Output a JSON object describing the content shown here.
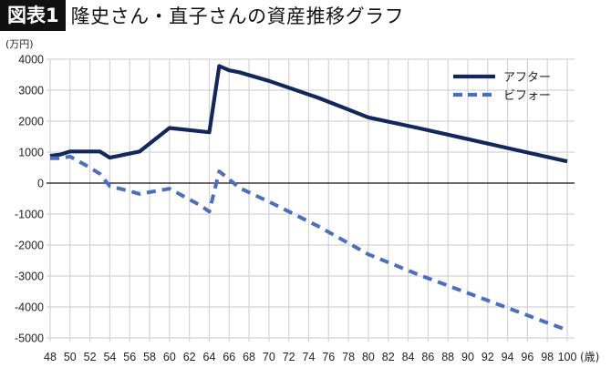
{
  "header": {
    "badge": "図表1",
    "title": "隆史さん・直子さんの資産推移グラフ"
  },
  "chart_data": {
    "type": "line",
    "title": "隆史さん・直子さんの資産推移グラフ",
    "ylabel": "(万円)",
    "xlabel": "(歳)",
    "xlim": [
      48,
      100
    ],
    "ylim": [
      -5000,
      4000
    ],
    "x_ticks": [
      48,
      50,
      52,
      54,
      56,
      58,
      60,
      62,
      64,
      66,
      68,
      70,
      72,
      74,
      76,
      78,
      80,
      82,
      84,
      86,
      88,
      90,
      92,
      94,
      96,
      98,
      100
    ],
    "y_ticks": [
      4000,
      3000,
      2000,
      1000,
      0,
      -1000,
      -2000,
      -3000,
      -4000,
      -5000
    ],
    "grid": true,
    "legend_position": "top-right",
    "series": [
      {
        "name": "アフター",
        "color": "#13285a",
        "style": "solid",
        "points": [
          [
            48,
            880
          ],
          [
            49,
            920
          ],
          [
            50,
            1020
          ],
          [
            51,
            1020
          ],
          [
            52,
            1020
          ],
          [
            53,
            1020
          ],
          [
            54,
            820
          ],
          [
            57,
            1020
          ],
          [
            60,
            1780
          ],
          [
            64,
            1640
          ],
          [
            65,
            3780
          ],
          [
            66,
            3640
          ],
          [
            67,
            3580
          ],
          [
            70,
            3300
          ],
          [
            75,
            2750
          ],
          [
            80,
            2120
          ],
          [
            85,
            1780
          ],
          [
            90,
            1420
          ],
          [
            95,
            1060
          ],
          [
            100,
            700
          ]
        ]
      },
      {
        "name": "ビフォー",
        "color": "#4a6fc0",
        "style": "dashed",
        "points": [
          [
            48,
            800
          ],
          [
            49,
            800
          ],
          [
            50,
            860
          ],
          [
            52,
            500
          ],
          [
            53,
            300
          ],
          [
            54,
            -100
          ],
          [
            56,
            -260
          ],
          [
            57,
            -350
          ],
          [
            60,
            -180
          ],
          [
            63,
            -700
          ],
          [
            64,
            -920
          ],
          [
            65,
            380
          ],
          [
            66,
            120
          ],
          [
            67,
            -150
          ],
          [
            70,
            -600
          ],
          [
            75,
            -1400
          ],
          [
            80,
            -2300
          ],
          [
            85,
            -2950
          ],
          [
            90,
            -3550
          ],
          [
            95,
            -4150
          ],
          [
            100,
            -4750
          ]
        ]
      }
    ]
  }
}
